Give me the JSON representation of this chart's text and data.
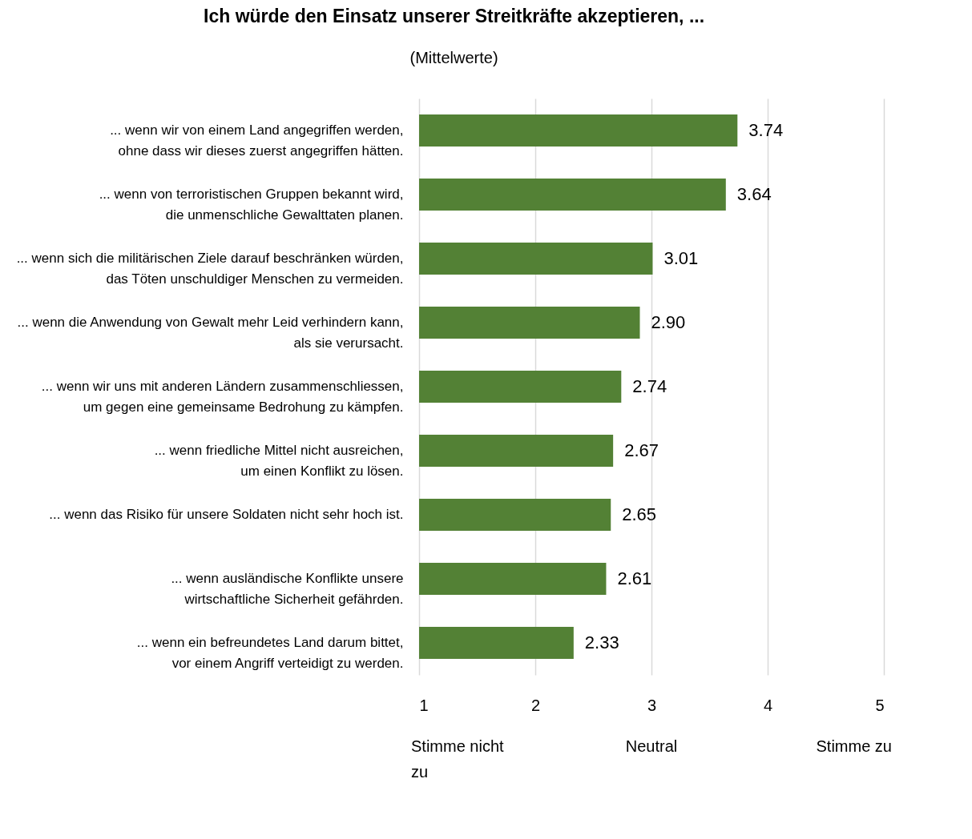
{
  "chart_data": {
    "type": "bar",
    "orientation": "horizontal",
    "title": "Ich würde den Einsatz unserer Streitkräfte akzeptieren, ...",
    "subtitle": "(Mittelwerte)",
    "categories": [
      "... wenn wir von einem Land angegriffen werden, ohne dass wir dieses zuerst angegriffen hätten.",
      "... wenn von terroristischen Gruppen bekannt wird, die unmenschliche Gewalttaten planen.",
      "... wenn sich die militärischen Ziele darauf beschränken würden, das Töten unschuldiger Menschen zu vermeiden.",
      "... wenn die Anwendung von Gewalt mehr Leid verhindern kann, als sie verursacht.",
      "... wenn wir uns mit anderen Ländern zusammenschliessen, um gegen eine gemeinsame Bedrohung zu kämpfen.",
      "... wenn friedliche Mittel nicht ausreichen, um einen Konflikt zu lösen.",
      "... wenn das Risiko für unsere Soldaten nicht sehr hoch ist.",
      "... wenn ausländische Konflikte unsere wirtschaftliche Sicherheit gefährden.",
      "... wenn ein befreundetes Land darum bittet, vor einem Angriff verteidigt zu werden."
    ],
    "values": [
      3.74,
      3.64,
      3.01,
      2.9,
      2.74,
      2.67,
      2.65,
      2.61,
      2.33
    ],
    "value_labels": [
      "3.74",
      "3.64",
      "3.01",
      "2.90",
      "2.74",
      "2.67",
      "2.65",
      "2.61",
      "2.33"
    ],
    "color": "#538135",
    "xlim": [
      1,
      5
    ],
    "xticks": [
      1,
      2,
      3,
      4,
      5
    ],
    "grid": "x",
    "annotations": [
      "Stimme nicht zu",
      "Neutral",
      "Stimme zu"
    ]
  }
}
